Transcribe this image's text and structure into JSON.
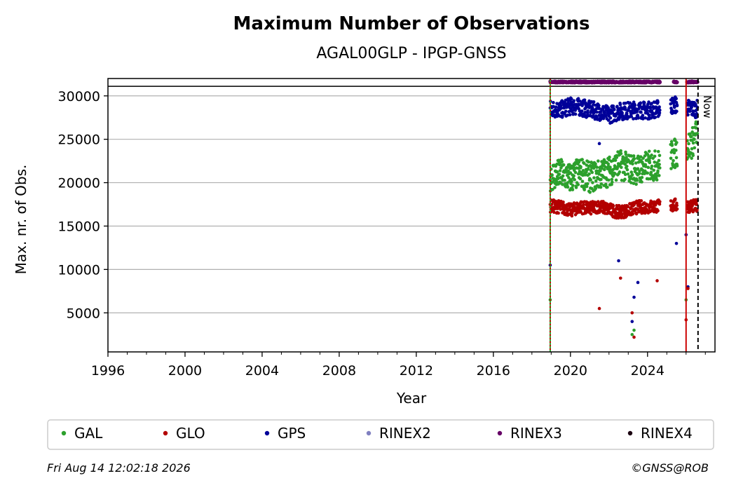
{
  "chart_data": {
    "type": "scatter",
    "title": "Maximum Number of Observations",
    "subtitle": "AGAL00GLP - IPGP-GNSS",
    "xlabel": "Year",
    "ylabel": "Max. nr. of Obs.",
    "xlim": [
      1996.0,
      2027.5
    ],
    "ylim": [
      500,
      32000
    ],
    "x_ticks": [
      1996,
      2000,
      2004,
      2008,
      2012,
      2016,
      2020,
      2024
    ],
    "y_ticks": [
      5000,
      10000,
      15000,
      20000,
      25000,
      30000
    ],
    "grid": "horizontal",
    "legend_position": "bottom",
    "series": [
      {
        "name": "GAL",
        "color": "#2ca02c",
        "band": [
          19000,
          22500
        ],
        "x": [
          2019.0,
          2019.5,
          2020.0,
          2020.5,
          2021.0,
          2021.5,
          2022.0,
          2022.5,
          2023.0,
          2023.5,
          2024.0,
          2024.5,
          2025.5,
          2026.3,
          2026.6
        ],
        "y": [
          20800,
          21000,
          20500,
          21200,
          20600,
          20900,
          21300,
          22100,
          21700,
          21500,
          21900,
          22000,
          23500,
          24500,
          26000
        ],
        "outliers": [
          [
            2018.95,
            6500
          ],
          [
            2023.2,
            2500
          ],
          [
            2023.3,
            3000
          ],
          [
            2026.0,
            6500
          ]
        ]
      },
      {
        "name": "GLO",
        "color": "#b30000",
        "band": [
          16500,
          18000
        ],
        "x": [
          2019.0,
          2019.5,
          2020.0,
          2020.5,
          2021.0,
          2021.5,
          2022.0,
          2022.5,
          2023.0,
          2023.5,
          2024.0,
          2024.5,
          2025.5,
          2026.3
        ],
        "y": [
          17300,
          17200,
          16800,
          17200,
          17000,
          17300,
          16900,
          16600,
          16800,
          17200,
          17200,
          17300,
          17400,
          17300
        ],
        "outliers": [
          [
            2021.5,
            5500
          ],
          [
            2022.6,
            9000
          ],
          [
            2023.2,
            5000
          ],
          [
            2023.3,
            2200
          ],
          [
            2024.5,
            8700
          ],
          [
            2026.0,
            4200
          ],
          [
            2026.1,
            7800
          ]
        ]
      },
      {
        "name": "GPS",
        "color": "#000099",
        "band": [
          27500,
          29500
        ],
        "x": [
          2019.0,
          2019.5,
          2020.0,
          2020.5,
          2021.0,
          2021.5,
          2022.0,
          2022.5,
          2023.0,
          2023.5,
          2024.0,
          2024.5,
          2025.5,
          2026.3
        ],
        "y": [
          28500,
          28400,
          28800,
          28700,
          28400,
          28200,
          27800,
          28200,
          28300,
          28400,
          28300,
          28500,
          29000,
          28500
        ],
        "outliers": [
          [
            2018.95,
            10500
          ],
          [
            2021.5,
            24500
          ],
          [
            2022.0,
            16500
          ],
          [
            2022.5,
            11000
          ],
          [
            2023.2,
            4000
          ],
          [
            2023.3,
            6800
          ],
          [
            2023.5,
            8500
          ],
          [
            2025.5,
            13000
          ],
          [
            2026.0,
            14000
          ],
          [
            2026.1,
            8000
          ]
        ]
      },
      {
        "name": "RINEX2",
        "color": "#8080c0",
        "x": [],
        "y": []
      },
      {
        "name": "RINEX3",
        "color": "#660066",
        "x": [
          2019.0,
          2019.5,
          2020.0,
          2020.5,
          2021.0,
          2021.5,
          2022.0,
          2022.5,
          2023.0,
          2023.5,
          2024.0,
          2024.5,
          2025.4,
          2026.1,
          2026.6
        ],
        "y": [
          31600,
          31600,
          31600,
          31600,
          31600,
          31600,
          31600,
          31600,
          31600,
          31600,
          31600,
          31600,
          31600,
          31600,
          31600
        ]
      },
      {
        "name": "RINEX4",
        "color": "#1a0010",
        "x": [],
        "y": []
      }
    ],
    "vertical_lines": [
      {
        "x": 2018.95,
        "color": "#2ca02c",
        "style": "solid"
      },
      {
        "x": 2018.95,
        "color": "#cc0000",
        "style": "dotted"
      },
      {
        "x": 2026.0,
        "color": "#cc0000",
        "style": "solid"
      },
      {
        "x": 2026.62,
        "color": "#000000",
        "style": "dashed",
        "label": "Now"
      }
    ],
    "top_line_y": 31100
  },
  "footer": {
    "timestamp": "Fri Aug 14 12:02:18 2026",
    "credit": "©GNSS@ROB"
  }
}
